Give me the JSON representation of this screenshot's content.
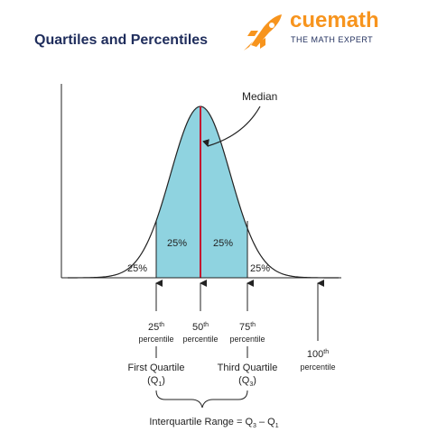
{
  "header": {
    "title": "Quartiles and Percentiles",
    "brand": "cuemath",
    "tagline": "THE MATH EXPERT"
  },
  "diagram": {
    "median_label": "Median",
    "areas": [
      "25%",
      "25%",
      "25%",
      "25%"
    ],
    "percentiles": [
      {
        "number": "25",
        "suffix": "th",
        "word": "percentile"
      },
      {
        "number": "50",
        "suffix": "th",
        "word": "percentile"
      },
      {
        "number": "75",
        "suffix": "th",
        "word": "percentile"
      },
      {
        "number": "100",
        "suffix": "th",
        "word": "percentile"
      }
    ],
    "quartiles": [
      {
        "name": "First Quartile",
        "open": "(",
        "symbol": "Q",
        "subscript": "1",
        "close": ")"
      },
      {
        "name": "Third Quartile",
        "open": "(",
        "symbol": "Q",
        "subscript": "3",
        "close": ")"
      }
    ],
    "iqr": {
      "label": "Interquartile Range = ",
      "q3": "Q",
      "q3_sub": "3",
      "minus": " – ",
      "q1": "Q",
      "q1_sub": "1"
    }
  }
}
